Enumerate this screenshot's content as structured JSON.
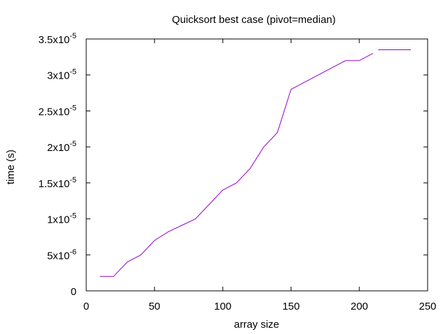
{
  "chart_data": {
    "type": "line",
    "title": "Quicksort best case (pivot=median)",
    "xlabel": "array size",
    "ylabel": "time (s)",
    "xlim": [
      0,
      250
    ],
    "ylim": [
      0,
      3.5e-05
    ],
    "grid": false,
    "legend": "top-right",
    "x_ticks": [
      {
        "value": 0,
        "label": "0"
      },
      {
        "value": 50,
        "label": "50"
      },
      {
        "value": 100,
        "label": "100"
      },
      {
        "value": 150,
        "label": "150"
      },
      {
        "value": 200,
        "label": "200"
      },
      {
        "value": 250,
        "label": "250"
      }
    ],
    "y_ticks": [
      {
        "value": 0,
        "base": "0",
        "exp": ""
      },
      {
        "value": 5e-06,
        "base": "5x10",
        "exp": "-6"
      },
      {
        "value": 1e-05,
        "base": "1x10",
        "exp": "-5"
      },
      {
        "value": 1.5e-05,
        "base": "1.5x10",
        "exp": "-5"
      },
      {
        "value": 2e-05,
        "base": "2x10",
        "exp": "-5"
      },
      {
        "value": 2.5e-05,
        "base": "2.5x10",
        "exp": "-5"
      },
      {
        "value": 3e-05,
        "base": "3x10",
        "exp": "-5"
      },
      {
        "value": 3.5e-05,
        "base": "3.5x10",
        "exp": "-5"
      }
    ],
    "series": [
      {
        "color": "#9400d3",
        "x": [
          10,
          20,
          30,
          40,
          50,
          60,
          70,
          80,
          90,
          100,
          110,
          120,
          130,
          140,
          150,
          160,
          170,
          180,
          190,
          200,
          210
        ],
        "y": [
          2e-06,
          2e-06,
          4e-06,
          5e-06,
          7e-06,
          8.2e-06,
          9.1e-06,
          1e-05,
          1.2e-05,
          1.4e-05,
          1.5e-05,
          1.7e-05,
          2e-05,
          2.2e-05,
          2.8e-05,
          2.9e-05,
          3e-05,
          3.1e-05,
          3.2e-05,
          3.2e-05,
          3.3e-05
        ]
      }
    ],
    "legend_color": "#9400d3"
  }
}
